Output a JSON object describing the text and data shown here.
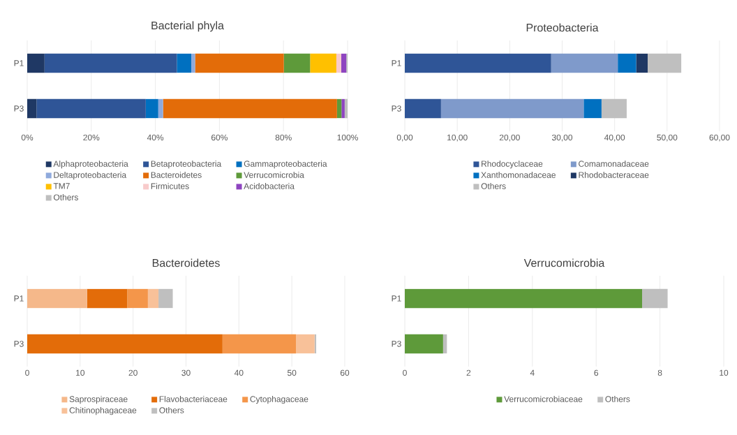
{
  "chart_data": [
    {
      "type": "bar",
      "orientation": "horizontal",
      "stacked": true,
      "title": "Bacterial phyla",
      "categories": [
        "P1",
        "P3"
      ],
      "xlim": [
        0,
        100
      ],
      "xticks": [
        {
          "value": 0,
          "label": "0%"
        },
        {
          "value": 20,
          "label": "20%"
        },
        {
          "value": 40,
          "label": "40%"
        },
        {
          "value": 60,
          "label": "60%"
        },
        {
          "value": 80,
          "label": "80%"
        },
        {
          "value": 100,
          "label": "100%"
        }
      ],
      "grid": "x",
      "legend": "bottom",
      "series": [
        {
          "name": "Alphaproteobacteria",
          "color": "#1f3864",
          "values": [
            5.4,
            2.9
          ]
        },
        {
          "name": "Betaproteobacteria",
          "color": "#2f5597",
          "values": [
            41.3,
            34.1
          ]
        },
        {
          "name": "Gammaproteobacteria",
          "color": "#0070c0",
          "values": [
            4.5,
            3.9
          ]
        },
        {
          "name": "Deltaproteobacteria",
          "color": "#8faadc",
          "values": [
            1.2,
            1.5
          ]
        },
        {
          "name": "Bacteroidetes",
          "color": "#e36c09",
          "values": [
            27.7,
            54.3
          ]
        },
        {
          "name": "Verrucomicrobia",
          "color": "#5e9a3a",
          "values": [
            8.2,
            1.4
          ]
        },
        {
          "name": "TM7",
          "color": "#ffc000",
          "values": [
            8.2,
            0
          ]
        },
        {
          "name": "Firmicutes",
          "color": "#f8cbcb",
          "values": [
            1.5,
            0
          ]
        },
        {
          "name": "Acidobacteria",
          "color": "#8e44c0",
          "values": [
            1.6,
            1.0
          ]
        },
        {
          "name": "Others",
          "color": "#bfbfbf",
          "values": [
            0.4,
            0.9
          ]
        }
      ]
    },
    {
      "type": "bar",
      "orientation": "horizontal",
      "stacked": true,
      "title": "Proteobacteria",
      "categories": [
        "P1",
        "P3"
      ],
      "xlim": [
        0,
        60
      ],
      "xticks": [
        {
          "value": 0,
          "label": "0,00"
        },
        {
          "value": 10,
          "label": "10,00"
        },
        {
          "value": 20,
          "label": "20,00"
        },
        {
          "value": 30,
          "label": "30,00"
        },
        {
          "value": 40,
          "label": "40,00"
        },
        {
          "value": 50,
          "label": "50,00"
        },
        {
          "value": 60,
          "label": "60,00"
        }
      ],
      "grid": "x",
      "legend": "bottom",
      "series": [
        {
          "name": "Rhodocyclaceae",
          "color": "#2f5597",
          "values": [
            27.9,
            6.9
          ]
        },
        {
          "name": "Comamonadaceae",
          "color": "#7f9acb",
          "values": [
            12.7,
            27.2
          ]
        },
        {
          "name": "Xanthomonadaceae",
          "color": "#0070c0",
          "values": [
            3.5,
            3.4
          ]
        },
        {
          "name": "Rhodobacteraceae",
          "color": "#1f3864",
          "values": [
            2.2,
            0
          ]
        },
        {
          "name": "Others",
          "color": "#bfbfbf",
          "values": [
            6.4,
            4.8
          ]
        }
      ]
    },
    {
      "type": "bar",
      "orientation": "horizontal",
      "stacked": true,
      "title": "Bacteroidetes",
      "categories": [
        "P1",
        "P3"
      ],
      "xlim": [
        0,
        60
      ],
      "xticks": [
        0,
        10,
        20,
        30,
        40,
        50,
        60
      ],
      "grid": "x",
      "legend": "bottom",
      "series": [
        {
          "name": "Saprospiraceae",
          "color": "#f5b88a",
          "values": [
            11.3,
            0
          ]
        },
        {
          "name": "Flavobacteriaceae",
          "color": "#e36c09",
          "values": [
            7.6,
            36.9
          ]
        },
        {
          "name": "Cytophagaceae",
          "color": "#f4964a",
          "values": [
            3.9,
            13.9
          ]
        },
        {
          "name": "Chitinophagaceae",
          "color": "#f8c199",
          "values": [
            2.0,
            3.5
          ]
        },
        {
          "name": "Others",
          "color": "#bfbfbf",
          "values": [
            2.7,
            0.3
          ]
        }
      ]
    },
    {
      "type": "bar",
      "orientation": "horizontal",
      "stacked": true,
      "title": "Verrucomicrobia",
      "categories": [
        "P1",
        "P3"
      ],
      "xlim": [
        0,
        10
      ],
      "xticks": [
        0,
        2,
        4,
        6,
        8,
        10
      ],
      "grid": "x",
      "legend": "bottom",
      "series": [
        {
          "name": "Verrucomicrobiaceae",
          "color": "#5e9a3a",
          "values": [
            7.44,
            1.2
          ]
        },
        {
          "name": "Others",
          "color": "#bfbfbf",
          "values": [
            0.8,
            0.12
          ]
        }
      ]
    }
  ]
}
